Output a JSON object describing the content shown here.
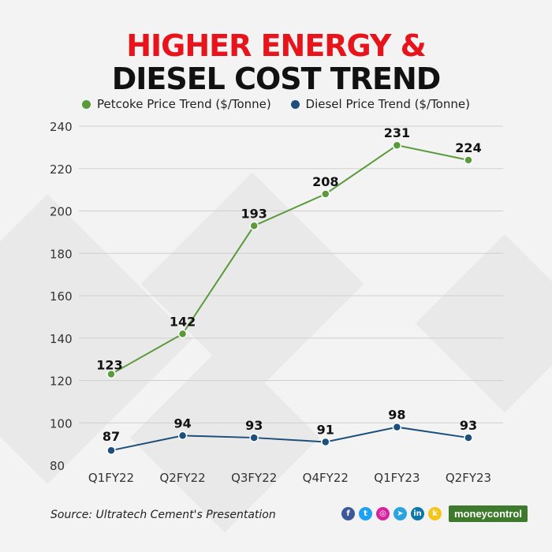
{
  "title_line1": "HIGHER ENERGY &",
  "title_line2": "DIESEL COST TREND",
  "colors": {
    "title_line1": "#e8141b",
    "title_line2": "#111111",
    "petcoke": "#5b9a3a",
    "diesel": "#1c4f7c",
    "grid": "#cfcfcf"
  },
  "source": "Source: Ultratech Cement's Presentation",
  "brand": "moneycontrol",
  "social_icons": [
    {
      "name": "facebook-icon",
      "glyph": "f",
      "color": "#3b5998"
    },
    {
      "name": "twitter-icon",
      "glyph": "t",
      "color": "#1da1f2"
    },
    {
      "name": "instagram-icon",
      "glyph": "◎",
      "color": "#d6249f"
    },
    {
      "name": "telegram-icon",
      "glyph": "➤",
      "color": "#2aa3df"
    },
    {
      "name": "linkedin-icon",
      "glyph": "in",
      "color": "#0e76a8"
    },
    {
      "name": "koo-icon",
      "glyph": "k",
      "color": "#f5c518"
    }
  ],
  "chart_data": {
    "type": "line",
    "categories": [
      "Q1FY22",
      "Q2FY22",
      "Q3FY22",
      "Q4FY22",
      "Q1FY23",
      "Q2FY23"
    ],
    "series": [
      {
        "name": "Petcoke Price Trend ($/Tonne)",
        "values": [
          123,
          142,
          193,
          208,
          231,
          224
        ]
      },
      {
        "name": "Diesel Price Trend ($/Tonne)",
        "values": [
          87,
          94,
          93,
          91,
          98,
          93
        ]
      }
    ],
    "yticks": [
      80,
      100,
      120,
      140,
      160,
      180,
      200,
      220,
      240
    ],
    "ylim": [
      80,
      240
    ],
    "legend_position": "top"
  }
}
